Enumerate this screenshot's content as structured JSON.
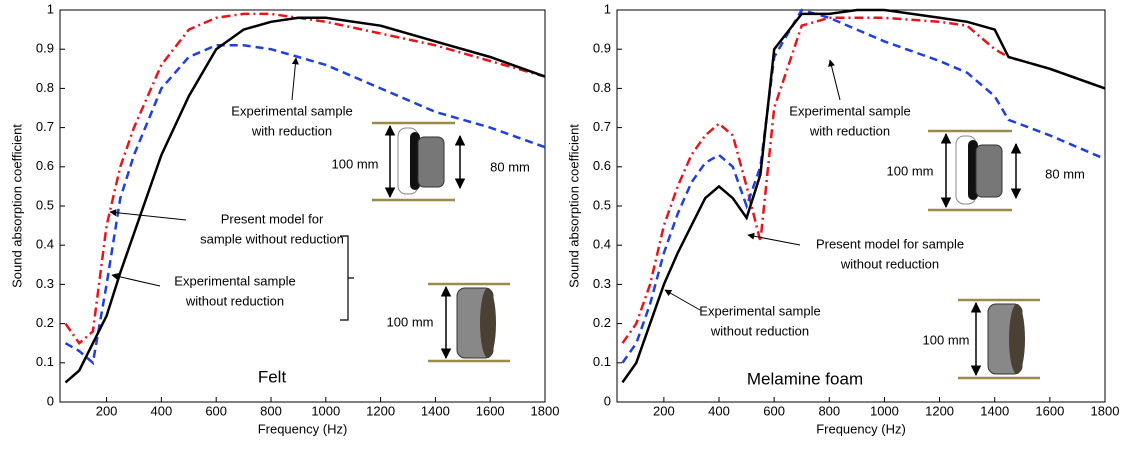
{
  "chart_data": [
    {
      "type": "line",
      "xlabel": "Frequency (Hz)",
      "ylabel": "Sound absorption coefficient",
      "xlim": [
        30,
        1800
      ],
      "xticks": [
        200,
        400,
        600,
        800,
        1000,
        1200,
        1400,
        1600,
        1800
      ],
      "ylim": [
        0,
        1
      ],
      "yticks": [
        0,
        0.1,
        0.2,
        0.3,
        0.4,
        0.5,
        0.6,
        0.7,
        0.8,
        0.9,
        1
      ],
      "x": [
        50,
        100,
        150,
        200,
        250,
        300,
        400,
        500,
        600,
        700,
        800,
        900,
        1000,
        1200,
        1400,
        1600,
        1800
      ],
      "series": [
        {
          "color": "#e8141c",
          "dash": "dashdot",
          "values": [
            0.2,
            0.15,
            0.18,
            0.45,
            0.6,
            0.7,
            0.86,
            0.95,
            0.98,
            0.99,
            0.99,
            0.98,
            0.97,
            0.94,
            0.91,
            0.87,
            0.83
          ]
        },
        {
          "color": "#1f3fe0",
          "dash": "dashed",
          "values": [
            0.15,
            0.13,
            0.1,
            0.3,
            0.52,
            0.63,
            0.8,
            0.88,
            0.91,
            0.91,
            0.9,
            0.88,
            0.86,
            0.8,
            0.74,
            0.7,
            0.65
          ]
        },
        {
          "color": "#000000",
          "dash": "solid",
          "values": [
            0.05,
            0.08,
            0.15,
            0.22,
            0.33,
            0.43,
            0.63,
            0.78,
            0.9,
            0.95,
            0.97,
            0.98,
            0.98,
            0.96,
            0.92,
            0.88,
            0.83
          ]
        }
      ],
      "annotations": [
        {
          "lines": [
            "Experimental sample",
            "with reduction"
          ]
        },
        {
          "lines": [
            "Present model for",
            "sample without reduction"
          ]
        },
        {
          "lines": [
            "Experimental sample",
            "without reduction"
          ]
        }
      ],
      "labels": [
        "Felt",
        "100 mm",
        "80 mm",
        "100 mm"
      ]
    },
    {
      "type": "line",
      "xlabel": "Frequency (Hz)",
      "ylabel": "Sound absorption coefficient",
      "xlim": [
        30,
        1800
      ],
      "xticks": [
        200,
        400,
        600,
        800,
        1000,
        1200,
        1400,
        1600,
        1800
      ],
      "ylim": [
        0,
        1
      ],
      "yticks": [
        0,
        0.1,
        0.2,
        0.3,
        0.4,
        0.5,
        0.6,
        0.7,
        0.8,
        0.9,
        1
      ],
      "x": [
        50,
        100,
        150,
        200,
        250,
        300,
        350,
        400,
        450,
        500,
        550,
        600,
        700,
        800,
        900,
        1000,
        1200,
        1300,
        1400,
        1450,
        1600,
        1800
      ],
      "series": [
        {
          "color": "#e8141c",
          "dash": "dashdot",
          "values": [
            0.15,
            0.2,
            0.3,
            0.45,
            0.55,
            0.63,
            0.68,
            0.71,
            0.68,
            0.55,
            0.41,
            0.75,
            0.96,
            0.98,
            0.98,
            0.98,
            0.97,
            0.96,
            0.9,
            0.88,
            0.85,
            0.8
          ]
        },
        {
          "color": "#1f3fe0",
          "dash": "dashed",
          "values": [
            0.1,
            0.15,
            0.25,
            0.38,
            0.48,
            0.56,
            0.61,
            0.63,
            0.6,
            0.5,
            0.6,
            0.88,
            1.0,
            0.98,
            0.95,
            0.92,
            0.87,
            0.84,
            0.78,
            0.72,
            0.68,
            0.62
          ]
        },
        {
          "color": "#000000",
          "dash": "solid",
          "values": [
            0.05,
            0.1,
            0.2,
            0.3,
            0.38,
            0.45,
            0.52,
            0.55,
            0.52,
            0.47,
            0.58,
            0.9,
            0.99,
            0.99,
            1.0,
            1.0,
            0.98,
            0.97,
            0.95,
            0.88,
            0.85,
            0.8
          ]
        }
      ],
      "annotations": [
        {
          "lines": [
            "Experimental sample",
            "with reduction"
          ]
        },
        {
          "lines": [
            "Present model for sample",
            "without reduction"
          ]
        },
        {
          "lines": [
            "Experimental sample",
            "without reduction"
          ]
        }
      ],
      "labels": [
        "Melamine foam",
        "100 mm",
        "80 mm",
        "100 mm"
      ]
    }
  ]
}
